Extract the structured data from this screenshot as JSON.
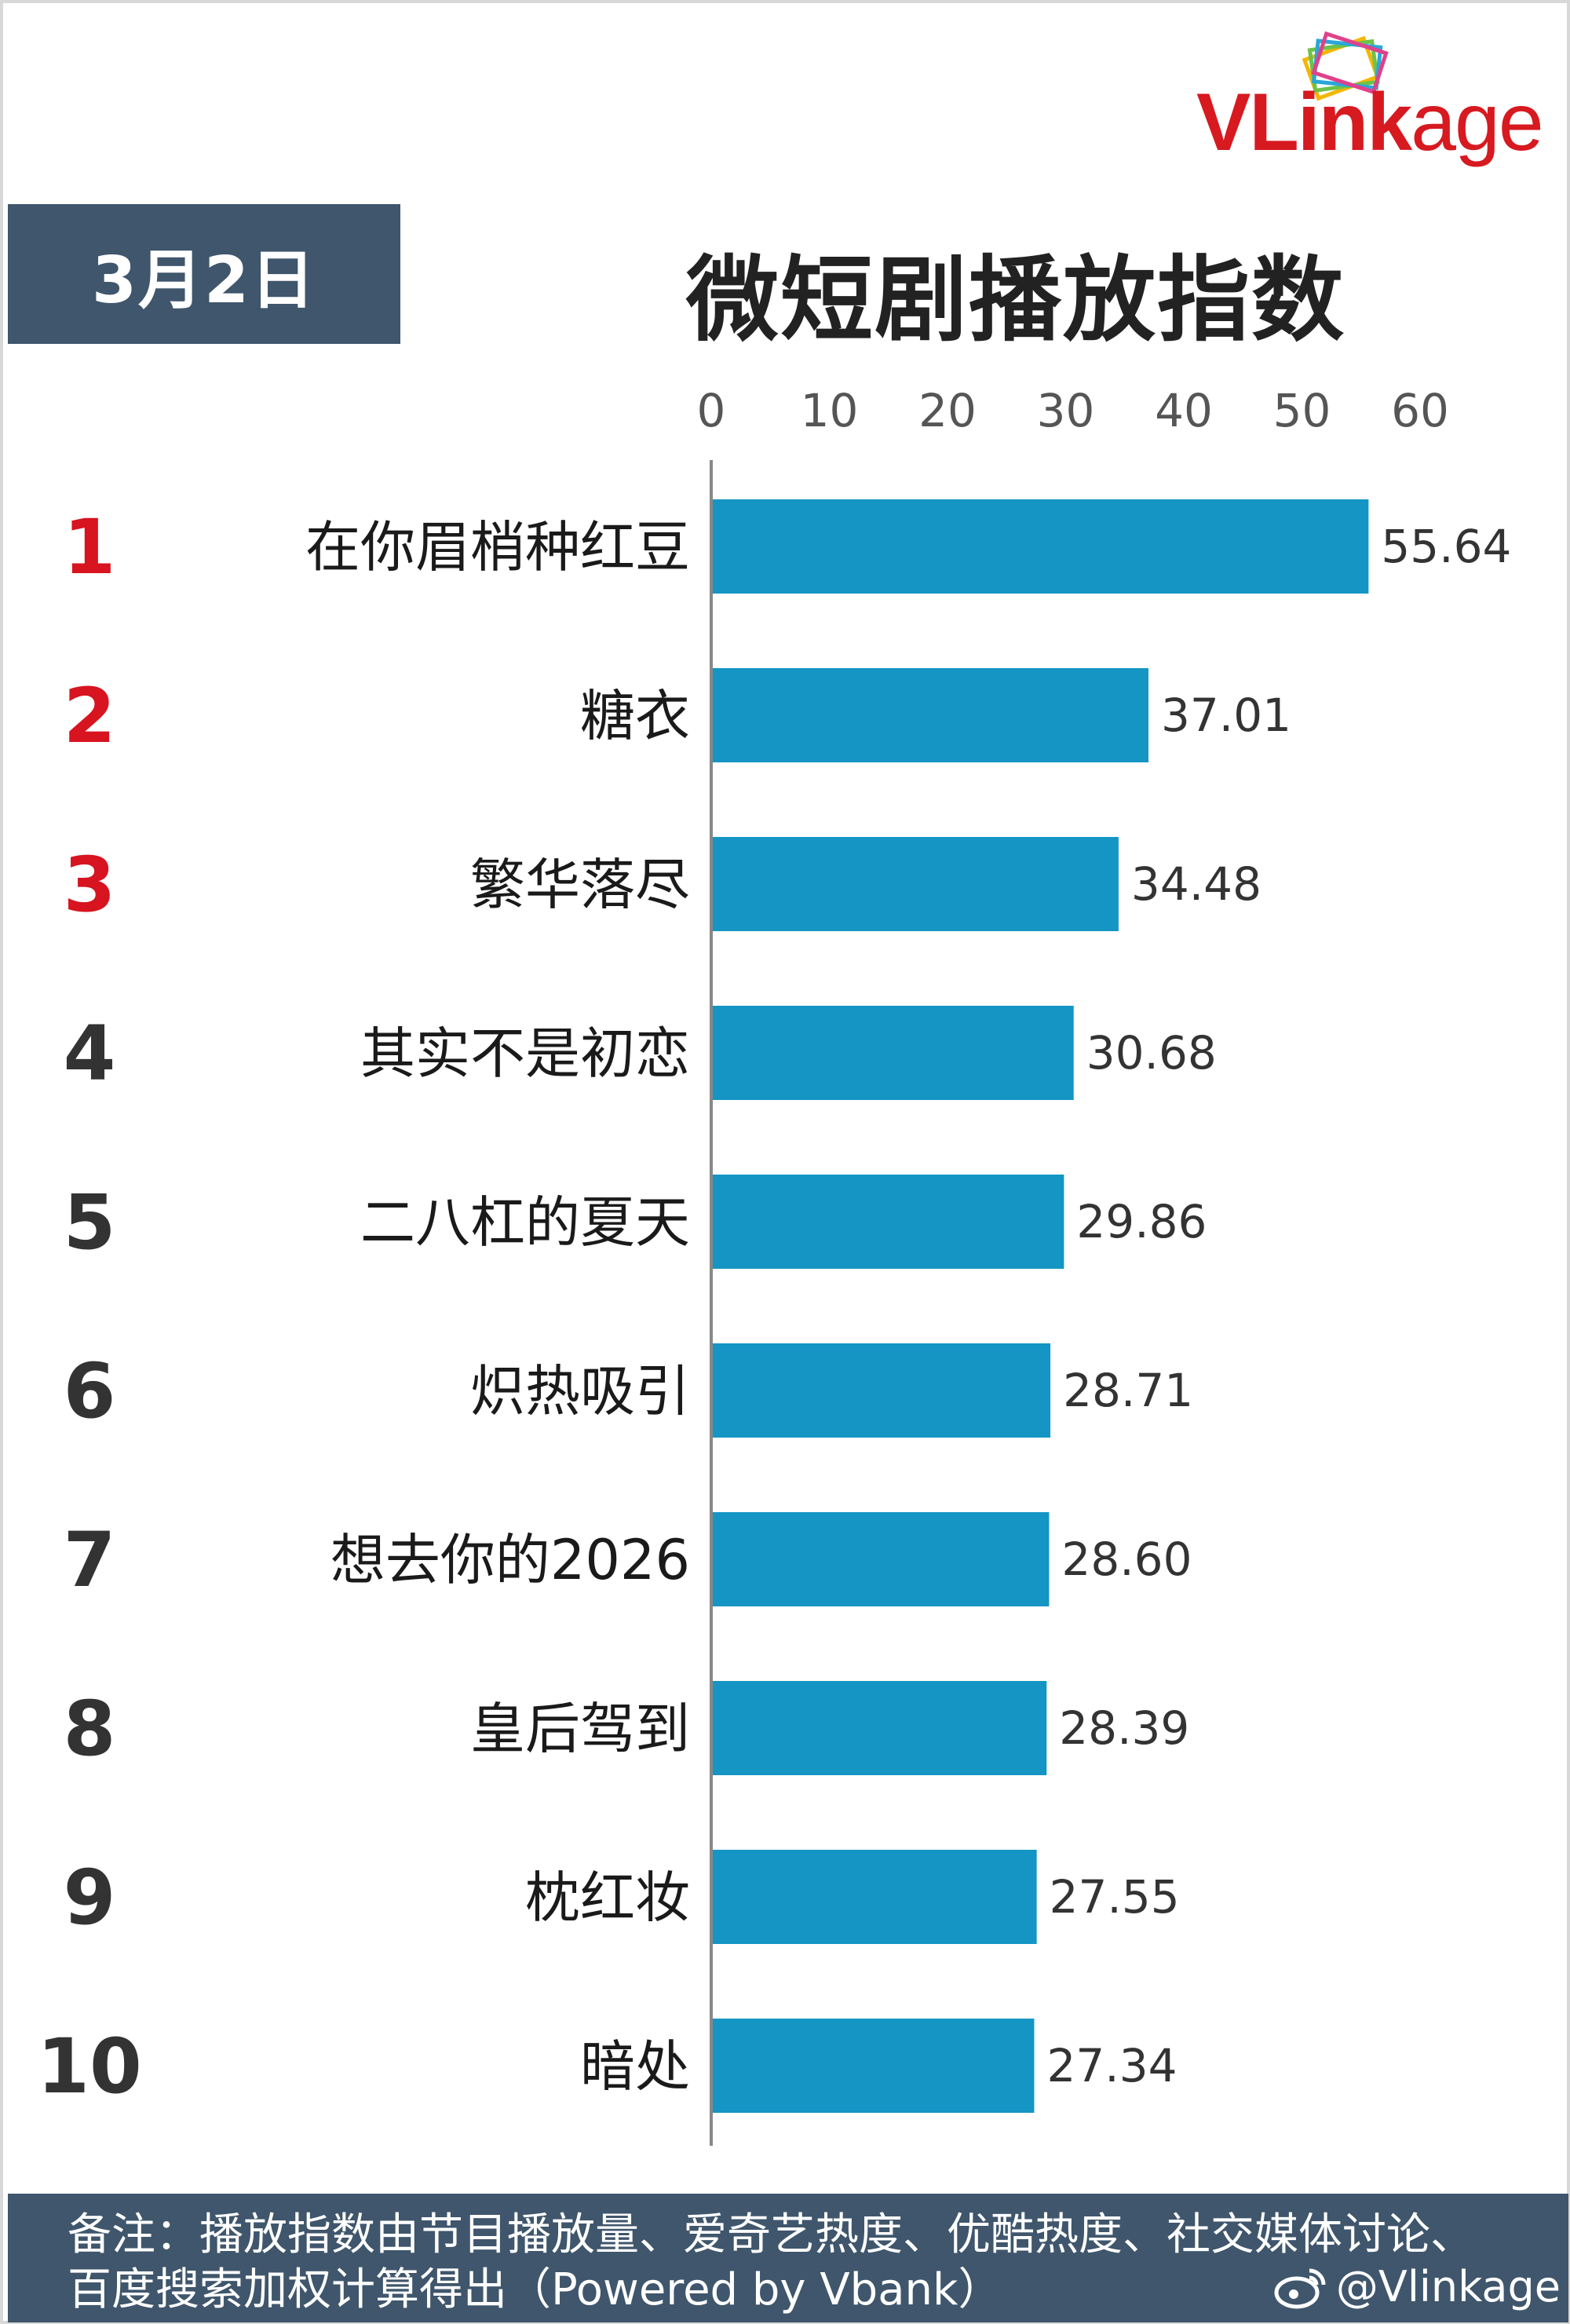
{
  "logo": {
    "text_v": "V",
    "text_l": "L",
    "text_ink": "ink",
    "text_age": "age"
  },
  "date_label": "3月2日",
  "title": "微短剧播放指数",
  "chart_data": {
    "type": "bar",
    "orientation": "horizontal",
    "title": "微短剧播放指数",
    "xlim": [
      0,
      60
    ],
    "x_ticks": [
      0,
      10,
      20,
      30,
      40,
      50,
      60
    ],
    "x_tick_labels": [
      "0",
      "10",
      "20",
      "30",
      "40",
      "50",
      "60"
    ],
    "ranks": [
      "1",
      "2",
      "3",
      "4",
      "5",
      "6",
      "7",
      "8",
      "9",
      "10"
    ],
    "categories": [
      "在你眉梢种红豆",
      "糖衣",
      "繁华落尽",
      "其实不是初恋",
      "二八杠的夏天",
      "炽热吸引",
      "想去你的2026",
      "皇后驾到",
      "枕红妆",
      "暗处"
    ],
    "values": [
      55.64,
      37.01,
      34.48,
      30.68,
      29.86,
      28.71,
      28.6,
      28.39,
      27.55,
      27.34
    ],
    "value_labels": [
      "55.64",
      "37.01",
      "34.48",
      "30.68",
      "29.86",
      "28.71",
      "28.60",
      "28.39",
      "27.55",
      "27.34"
    ],
    "bar_color": "#1495c4",
    "top_rank_color": "#d7141f",
    "rank_color": "#333333",
    "grid": false,
    "legend": "none"
  },
  "footer": {
    "note": "备注：播放指数由节目播放量、爱奇艺热度、优酷热度、社交媒体讨论、百度搜索加权计算得出（Powered by Vbank）",
    "handle": "@Vlinkage",
    "icon": "weibo-icon"
  },
  "colors": {
    "header_bg": "#3f566c",
    "logo_red": "#d71920"
  }
}
